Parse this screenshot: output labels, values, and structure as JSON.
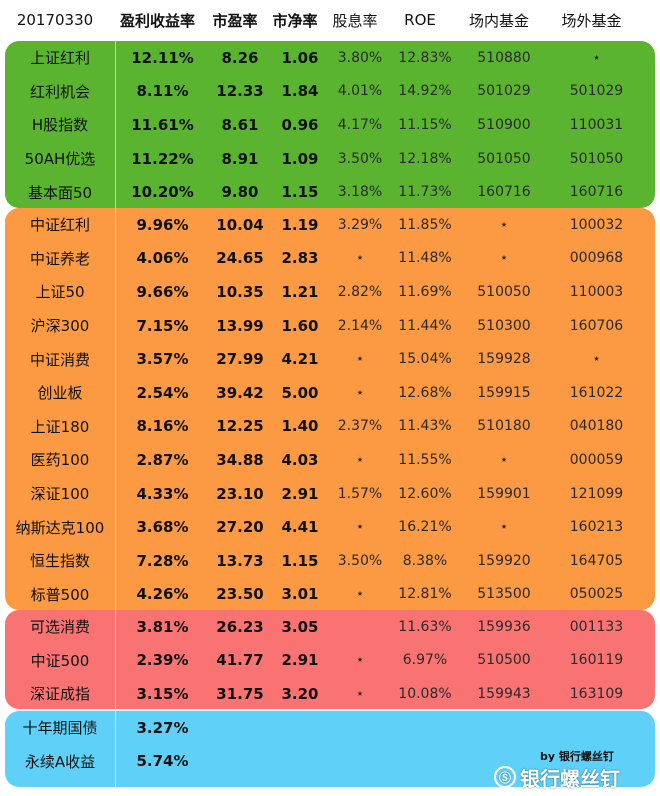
{
  "header": [
    "20170330",
    "盈利收益率",
    "市盈率",
    "市净率",
    "股息率",
    "ROE",
    "场内基金",
    "场外基金"
  ],
  "groups": [
    {
      "color": "#5ab430",
      "rows": [
        [
          "上证红利",
          "12.11%",
          "8.26",
          "1.06",
          "3.80%",
          "12.83%",
          "510880",
          "⋆"
        ],
        [
          "红利机会",
          "8.11%",
          "12.33",
          "1.84",
          "4.01%",
          "14.92%",
          "501029",
          "501029"
        ],
        [
          "H股指数",
          "11.61%",
          "8.61",
          "0.96",
          "4.17%",
          "11.15%",
          "510900",
          "110031"
        ],
        [
          "50AH优选",
          "11.22%",
          "8.91",
          "1.09",
          "3.50%",
          "12.18%",
          "501050",
          "501050"
        ],
        [
          "基本面50",
          "10.20%",
          "9.80",
          "1.15",
          "3.18%",
          "11.73%",
          "160716",
          "160716"
        ]
      ]
    },
    {
      "color": "#fb9a42",
      "rows": [
        [
          "中证红利",
          "9.96%",
          "10.04",
          "1.19",
          "3.29%",
          "11.85%",
          "⋆",
          "100032"
        ],
        [
          "中证养老",
          "4.06%",
          "24.65",
          "2.83",
          "⋆",
          "11.48%",
          "⋆",
          "000968"
        ],
        [
          "上证50",
          "9.66%",
          "10.35",
          "1.21",
          "2.82%",
          "11.69%",
          "510050",
          "110003"
        ],
        [
          "沪深300",
          "7.15%",
          "13.99",
          "1.60",
          "2.14%",
          "11.44%",
          "510300",
          "160706"
        ],
        [
          "中证消费",
          "3.57%",
          "27.99",
          "4.21",
          "⋆",
          "15.04%",
          "159928",
          "⋆"
        ],
        [
          "创业板",
          "2.54%",
          "39.42",
          "5.00",
          "⋆",
          "12.68%",
          "159915",
          "161022"
        ],
        [
          "上证180",
          "8.16%",
          "12.25",
          "1.40",
          "2.37%",
          "11.43%",
          "510180",
          "040180"
        ],
        [
          "医药100",
          "2.87%",
          "34.88",
          "4.03",
          "⋆",
          "11.55%",
          "⋆",
          "000059"
        ],
        [
          "深证100",
          "4.33%",
          "23.10",
          "2.91",
          "1.57%",
          "12.60%",
          "159901",
          "121099"
        ],
        [
          "纳斯达克100",
          "3.68%",
          "27.20",
          "4.41",
          "⋆",
          "16.21%",
          "⋆",
          "160213"
        ],
        [
          "恒生指数",
          "7.28%",
          "13.73",
          "1.15",
          "3.50%",
          "8.38%",
          "159920",
          "164705"
        ],
        [
          "标普500",
          "4.26%",
          "23.50",
          "3.01",
          "⋆",
          "12.81%",
          "513500",
          "050025"
        ]
      ]
    },
    {
      "color": "#fa7373",
      "rows": [
        [
          "可选消费",
          "3.81%",
          "26.23",
          "3.05",
          "",
          "11.63%",
          "159936",
          "001133"
        ],
        [
          "中证500",
          "2.39%",
          "41.77",
          "2.91",
          "⋆",
          "6.97%",
          "510500",
          "160119"
        ],
        [
          "深证成指",
          "3.15%",
          "31.75",
          "3.20",
          "⋆",
          "10.08%",
          "159943",
          "163109"
        ]
      ]
    },
    {
      "color": "#5fd0f8",
      "rows": [
        [
          "十年期国债",
          "3.27%",
          "",
          "",
          "",
          "",
          "",
          ""
        ],
        [
          "永续A收益",
          "5.74%",
          "",
          "",
          "",
          "",
          "",
          ""
        ]
      ]
    }
  ],
  "byline": "by 银行螺丝钉",
  "watermark": "银行螺丝钉",
  "watermark_logo": "Ⓢ"
}
